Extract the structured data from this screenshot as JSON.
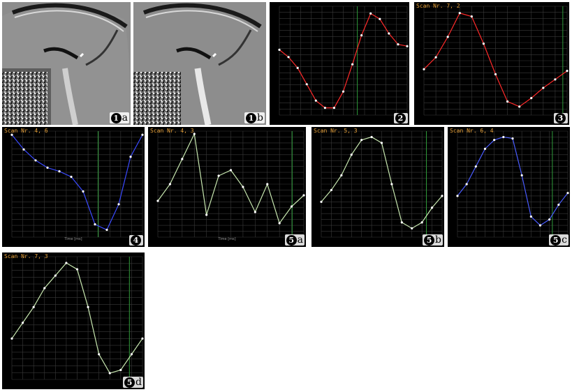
{
  "figures": [
    {
      "id": "1a",
      "num": "1",
      "suffix": "a",
      "kind": "mri"
    },
    {
      "id": "1b",
      "num": "1",
      "suffix": "b",
      "kind": "mri"
    },
    {
      "id": "2",
      "num": "2",
      "suffix": "",
      "kind": "chart",
      "title": "",
      "color": "#ff2a2a",
      "values": [
        0.06,
        0.02,
        -0.04,
        -0.13,
        -0.22,
        -0.26,
        -0.26,
        -0.17,
        -0.02,
        0.14,
        0.26,
        0.23,
        0.15,
        0.09,
        0.08
      ],
      "ylim": [
        -0.3,
        0.3
      ],
      "marker": 0.61
    },
    {
      "id": "3",
      "num": "3",
      "suffix": "",
      "kind": "chart",
      "title": "Scan Nr. 7, 2",
      "color": "#ff2a2a",
      "values": [
        -0.05,
        0.02,
        0.14,
        0.28,
        0.26,
        0.1,
        -0.08,
        -0.24,
        -0.27,
        -0.22,
        -0.16,
        -0.11,
        -0.06
      ],
      "ylim": [
        -0.32,
        0.32
      ],
      "marker": 0.97
    },
    {
      "id": "4",
      "num": "4",
      "suffix": "",
      "kind": "chart",
      "title": "Scan Nr. 4, 6",
      "color": "#3a4aff",
      "values": [
        0.22,
        0.14,
        0.08,
        0.04,
        0.02,
        -0.01,
        -0.09,
        -0.27,
        -0.3,
        -0.16,
        0.1,
        0.22
      ],
      "ylim": [
        -0.34,
        0.24
      ],
      "marker": 0.66
    },
    {
      "id": "5a",
      "num": "5",
      "suffix": "a",
      "kind": "chart",
      "title": "Scan Nr. 4, 3",
      "color": "#c8e8b0",
      "values": [
        -0.1,
        0.02,
        0.2,
        0.38,
        -0.2,
        0.08,
        0.12,
        0.0,
        -0.18,
        0.02,
        -0.26,
        -0.14,
        -0.06
      ],
      "ylim": [
        -0.36,
        0.4
      ],
      "marker": 0.92
    },
    {
      "id": "5b",
      "num": "5",
      "suffix": "b",
      "kind": "chart",
      "title": "Scan Nr. 5, 3",
      "color": "#c8e8b0",
      "values": [
        -0.12,
        -0.04,
        0.06,
        0.2,
        0.3,
        0.32,
        0.28,
        0.0,
        -0.26,
        -0.3,
        -0.26,
        -0.16,
        -0.08
      ],
      "ylim": [
        -0.36,
        0.36
      ],
      "marker": 0.87
    },
    {
      "id": "5c",
      "num": "5",
      "suffix": "c",
      "kind": "chart",
      "title": "Scan Nr. 6, 4",
      "color": "#4a5cff",
      "values": [
        -0.08,
        0.0,
        0.12,
        0.24,
        0.3,
        0.32,
        0.31,
        0.06,
        -0.22,
        -0.28,
        -0.24,
        -0.14,
        -0.06
      ],
      "ylim": [
        -0.36,
        0.36
      ],
      "marker": 0.86
    },
    {
      "id": "5d",
      "num": "5",
      "suffix": "d",
      "kind": "chart",
      "title": "Scan Nr. 7, 3",
      "color": "#c8e8b0",
      "values": [
        -0.12,
        -0.02,
        0.08,
        0.2,
        0.28,
        0.36,
        0.32,
        0.08,
        -0.22,
        -0.34,
        -0.32,
        -0.22,
        -0.12
      ],
      "ylim": [
        -0.38,
        0.4
      ],
      "marker": 0.9
    }
  ],
  "xaxis_label": "Time [ms]"
}
